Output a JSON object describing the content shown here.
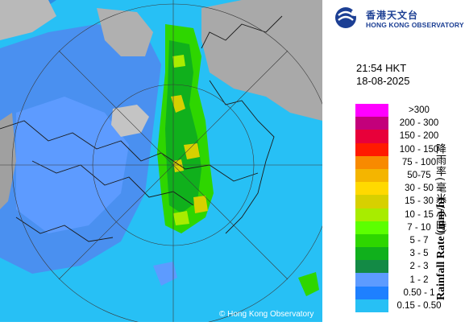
{
  "header": {
    "logo_cn": "香港天文台",
    "logo_en": "HONG KONG OBSERVATORY",
    "logo_icon": "hko-logo-icon"
  },
  "time": "21:54 HKT",
  "date": "18-08-2025",
  "legend": {
    "title_cn": "降雨率(毫米/小時)",
    "title_en": "Rainfall Rate (mm/h)",
    "items": [
      {
        "label": ">300",
        "color": "#ff00ff"
      },
      {
        "label": "200 - 300",
        "color": "#c3007b"
      },
      {
        "label": "150 - 200",
        "color": "#e8003a"
      },
      {
        "label": "100 - 150",
        "color": "#ff1a00"
      },
      {
        "label": "75 - 100",
        "color": "#f88a00"
      },
      {
        "label": "50-75",
        "color": "#f4b500"
      },
      {
        "label": "30 - 50",
        "color": "#ffd900"
      },
      {
        "label": "15 - 30",
        "color": "#d7d000"
      },
      {
        "label": "10 - 15",
        "color": "#a8ec00"
      },
      {
        "label": "7 - 10",
        "color": "#5cff00"
      },
      {
        "label": "5 - 7",
        "color": "#2ed600"
      },
      {
        "label": "3 - 5",
        "color": "#10b01c"
      },
      {
        "label": "2 - 3",
        "color": "#138a45"
      },
      {
        "label": "1 - 2",
        "color": "#5d9bff"
      },
      {
        "label": "0.50 - 1",
        "color": "#1e80ff"
      },
      {
        "label": "0.15 - 0.50",
        "color": "#27c0f5"
      }
    ]
  },
  "map": {
    "copyright": "© Hong Kong Observatory",
    "colors": {
      "sea": "#2c8fe6",
      "land": "#a9a9a9",
      "light_rain": "#27c0f5",
      "rain_band": "#5d9bff",
      "moderate": "#10b01c",
      "heavy": "#d7d000"
    }
  }
}
